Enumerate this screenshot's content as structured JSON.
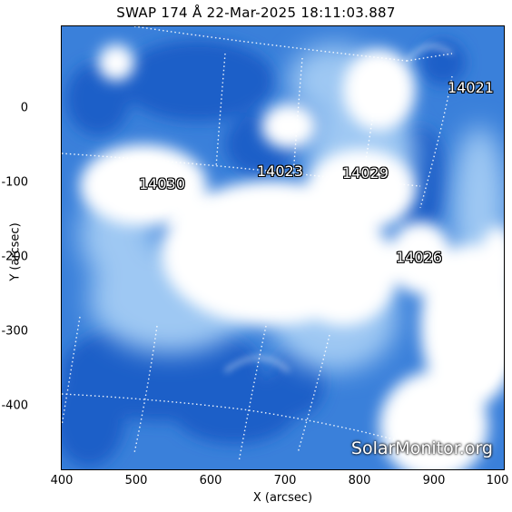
{
  "title": "SWAP 174 Å 22-Mar-2025 18:11:03.887",
  "x_axis": {
    "label": "X (arcsec)",
    "ticks": [
      "400",
      "500",
      "600",
      "700",
      "800",
      "900",
      "100"
    ]
  },
  "y_axis": {
    "label": "Y (arcsec)",
    "ticks": [
      "0",
      "-100",
      "-200",
      "-300",
      "-400"
    ]
  },
  "active_regions": [
    {
      "label": "14021"
    },
    {
      "label": "14023"
    },
    {
      "label": "14029"
    },
    {
      "label": "14030"
    },
    {
      "label": "14026"
    }
  ],
  "credit": "SolarMonitor.org",
  "colors": {
    "background": "#ffffff",
    "dark_blue": "#1a5fc8",
    "mid_blue": "#3f86de",
    "light_blue": "#9cc7f2",
    "bright": "#ffffff"
  }
}
